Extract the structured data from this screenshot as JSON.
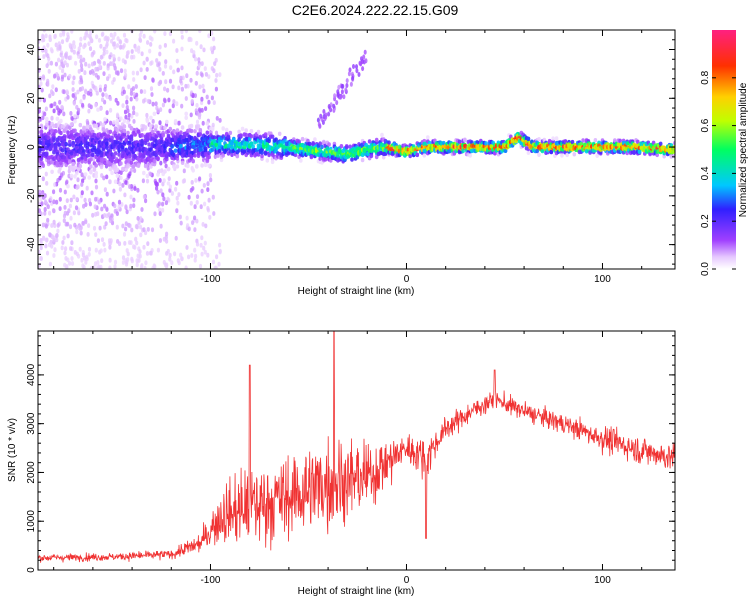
{
  "title": "C2E6.2024.222.22.15.G09",
  "colors": {
    "snr_line": "#f03232",
    "frame": "#000000",
    "background": "#ffffff"
  },
  "chart_data": [
    {
      "type": "heatmap",
      "xlabel": "Height of straight line (km)",
      "ylabel": "Frequency (Hz)",
      "xlim": [
        -188,
        137
      ],
      "ylim": [
        -50,
        48
      ],
      "xticks": [
        -100,
        0,
        100
      ],
      "yticks": [
        -40,
        -20,
        0,
        20,
        40
      ],
      "xtick_labels": [
        "-100",
        "0",
        "100"
      ],
      "ytick_labels": [
        "-40",
        "-20",
        "0",
        "20",
        "40"
      ],
      "colorbar": {
        "label": "Normalized spectral amplitude",
        "range": [
          0,
          1
        ],
        "ticks": [
          0.0,
          0.2,
          0.4,
          0.6,
          0.8
        ],
        "tick_labels": [
          "0.0",
          "0.2",
          "0.4",
          "0.6",
          "0.8"
        ],
        "colormap": "rainbow (white-violet-blue-cyan-green-yellow-red-magenta)"
      },
      "ridge": {
        "description": "main spectral ridge near 0 Hz",
        "points": [
          {
            "x": -188,
            "y": 0
          },
          {
            "x": -150,
            "y": 0
          },
          {
            "x": -120,
            "y": 0
          },
          {
            "x": -100,
            "y": 1
          },
          {
            "x": -80,
            "y": 1
          },
          {
            "x": -60,
            "y": 0
          },
          {
            "x": -40,
            "y": -2
          },
          {
            "x": -30,
            "y": -3
          },
          {
            "x": -20,
            "y": -1
          },
          {
            "x": -10,
            "y": 0
          },
          {
            "x": 0,
            "y": -2
          },
          {
            "x": 10,
            "y": 0
          },
          {
            "x": 30,
            "y": 0
          },
          {
            "x": 50,
            "y": 0
          },
          {
            "x": 57,
            "y": 4
          },
          {
            "x": 65,
            "y": 0
          },
          {
            "x": 90,
            "y": 0
          },
          {
            "x": 115,
            "y": 0
          },
          {
            "x": 137,
            "y": -1
          }
        ]
      }
    },
    {
      "type": "line",
      "xlabel": "Height of straight line (km)",
      "ylabel": "SNR (10 * v/v)",
      "xlim": [
        -188,
        137
      ],
      "ylim": [
        0,
        4900
      ],
      "xticks": [
        -100,
        0,
        100
      ],
      "yticks": [
        0,
        1000,
        2000,
        3000,
        4000
      ],
      "xtick_labels": [
        "-100",
        "0",
        "100"
      ],
      "ytick_labels": [
        "0",
        "1000",
        "2000",
        "3000",
        "4000"
      ],
      "series": [
        {
          "color": "#f03232",
          "envelope": [
            {
              "x": -188,
              "mean": 250,
              "spread": 120
            },
            {
              "x": -150,
              "mean": 270,
              "spread": 120
            },
            {
              "x": -120,
              "mean": 320,
              "spread": 150
            },
            {
              "x": -105,
              "mean": 550,
              "spread": 300
            },
            {
              "x": -95,
              "mean": 1100,
              "spread": 900
            },
            {
              "x": -80,
              "mean": 1300,
              "spread": 1300
            },
            {
              "x": -60,
              "mean": 1500,
              "spread": 1300
            },
            {
              "x": -40,
              "mean": 1800,
              "spread": 1500
            },
            {
              "x": -20,
              "mean": 1900,
              "spread": 1000
            },
            {
              "x": -10,
              "mean": 2200,
              "spread": 800
            },
            {
              "x": 0,
              "mean": 2500,
              "spread": 500
            },
            {
              "x": 10,
              "mean": 2300,
              "spread": 600
            },
            {
              "x": 20,
              "mean": 2900,
              "spread": 350
            },
            {
              "x": 35,
              "mean": 3300,
              "spread": 300
            },
            {
              "x": 45,
              "mean": 3500,
              "spread": 300
            },
            {
              "x": 60,
              "mean": 3250,
              "spread": 300
            },
            {
              "x": 80,
              "mean": 3000,
              "spread": 300
            },
            {
              "x": 100,
              "mean": 2700,
              "spread": 400
            },
            {
              "x": 120,
              "mean": 2450,
              "spread": 450
            },
            {
              "x": 137,
              "mean": 2300,
              "spread": 450
            }
          ],
          "peaks": [
            {
              "x": -80,
              "y": 4200
            },
            {
              "x": -37,
              "y": 4900
            },
            {
              "x": 10,
              "y": 650
            },
            {
              "x": 45,
              "y": 4100
            }
          ]
        }
      ]
    }
  ]
}
